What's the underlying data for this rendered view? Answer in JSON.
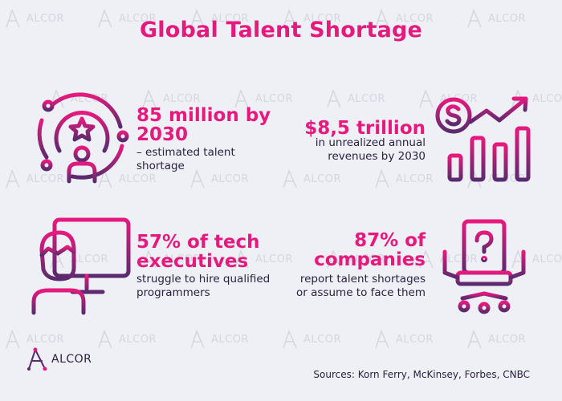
{
  "title": "Global Talent Shortage",
  "brand": {
    "name": "ALCOR",
    "watermark_text": "ALCOR"
  },
  "stats": [
    {
      "heading": "85 million by 2030",
      "desc": "– estimated talent shortage",
      "icon": "person-star-orbit-icon"
    },
    {
      "heading": "$8,5 trillion",
      "desc": "in unrealized annual revenues by 2030",
      "icon": "dollar-growth-chart-icon"
    },
    {
      "heading": "57% of tech executives",
      "desc": "struggle to hire qualified programmers",
      "icon": "programmer-monitor-icon"
    },
    {
      "heading": "87% of companies",
      "desc": "report talent shortages or assume to face them",
      "icon": "empty-chair-question-icon"
    }
  ],
  "sources": "Sources: Korn Ferry, McKinsey, Forbes, CNBC",
  "colors": {
    "background": "#eef0f6",
    "accent": "#e6197e",
    "dark": "#2b2140",
    "icon_gradient_start": "#e6197e",
    "icon_gradient_end": "#5a2a6e"
  }
}
